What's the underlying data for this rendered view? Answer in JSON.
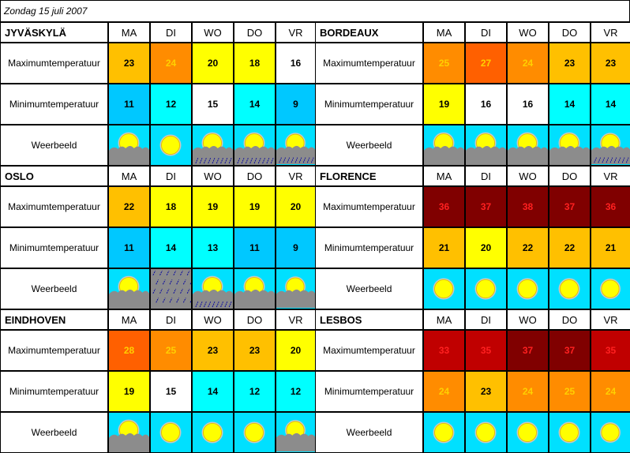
{
  "date": "Zondag 15 juli 2007",
  "days": [
    "MA",
    "DI",
    "WO",
    "DO",
    "VR"
  ],
  "row_labels": {
    "max": "Maximumtemperatuur",
    "min": "Minimumtemperatuur",
    "wx": "Weerbeeld"
  },
  "colors": {
    "cyan": "#00FFFF",
    "skyblue": "#00C8FF",
    "white": "#FFFFFF",
    "yellow": "#FFFF00",
    "lightorange": "#FFC000",
    "orange": "#FF8C00",
    "darkorange": "#FF6000",
    "red": "#C00000",
    "darkred": "#800000",
    "weather_bg": "#00E0FF"
  },
  "cities": [
    {
      "name": "JYVÄSKYLÄ",
      "max": [
        {
          "v": "23",
          "c": "lightorange"
        },
        {
          "v": "24",
          "c": "orange"
        },
        {
          "v": "20",
          "c": "yellow"
        },
        {
          "v": "18",
          "c": "yellow"
        },
        {
          "v": "16",
          "c": "white"
        }
      ],
      "min": [
        {
          "v": "11",
          "c": "skyblue"
        },
        {
          "v": "12",
          "c": "cyan"
        },
        {
          "v": "15",
          "c": "white"
        },
        {
          "v": "14",
          "c": "cyan"
        },
        {
          "v": "9",
          "c": "skyblue"
        }
      ],
      "wx": [
        "sun-behind-cloud-icon",
        "sun-icon",
        "sun-cloud-rain-icon",
        "sun-cloud-rain-icon",
        "sun-cloud-rain-icon"
      ]
    },
    {
      "name": "BORDEAUX",
      "max": [
        {
          "v": "25",
          "c": "orange"
        },
        {
          "v": "27",
          "c": "darkorange"
        },
        {
          "v": "24",
          "c": "orange"
        },
        {
          "v": "23",
          "c": "lightorange"
        },
        {
          "v": "23",
          "c": "lightorange"
        }
      ],
      "min": [
        {
          "v": "19",
          "c": "yellow"
        },
        {
          "v": "16",
          "c": "white"
        },
        {
          "v": "16",
          "c": "white"
        },
        {
          "v": "14",
          "c": "cyan"
        },
        {
          "v": "14",
          "c": "cyan"
        }
      ],
      "wx": [
        "sun-behind-cloud-icon",
        "sun-behind-cloud-icon",
        "sun-behind-cloud-icon",
        "sun-behind-cloud-icon",
        "sun-cloud-rain-icon"
      ]
    },
    {
      "name": "OSLO",
      "max": [
        {
          "v": "22",
          "c": "lightorange"
        },
        {
          "v": "18",
          "c": "yellow"
        },
        {
          "v": "19",
          "c": "yellow"
        },
        {
          "v": "19",
          "c": "yellow"
        },
        {
          "v": "20",
          "c": "yellow"
        }
      ],
      "min": [
        {
          "v": "11",
          "c": "skyblue"
        },
        {
          "v": "14",
          "c": "cyan"
        },
        {
          "v": "13",
          "c": "cyan"
        },
        {
          "v": "11",
          "c": "skyblue"
        },
        {
          "v": "9",
          "c": "skyblue"
        }
      ],
      "wx": [
        "sun-behind-cloud-icon",
        "rain-icon",
        "sun-cloud-rain-icon",
        "sun-behind-cloud-icon",
        "sun-behind-cloud-icon"
      ]
    },
    {
      "name": "FLORENCE",
      "max": [
        {
          "v": "36",
          "c": "darkred"
        },
        {
          "v": "37",
          "c": "darkred"
        },
        {
          "v": "38",
          "c": "darkred"
        },
        {
          "v": "37",
          "c": "darkred"
        },
        {
          "v": "36",
          "c": "darkred"
        }
      ],
      "min": [
        {
          "v": "21",
          "c": "lightorange"
        },
        {
          "v": "20",
          "c": "yellow"
        },
        {
          "v": "22",
          "c": "lightorange"
        },
        {
          "v": "22",
          "c": "lightorange"
        },
        {
          "v": "21",
          "c": "lightorange"
        }
      ],
      "wx": [
        "sun-icon",
        "sun-icon",
        "sun-icon",
        "sun-icon",
        "sun-icon"
      ]
    },
    {
      "name": "EINDHOVEN",
      "max": [
        {
          "v": "28",
          "c": "darkorange"
        },
        {
          "v": "25",
          "c": "orange"
        },
        {
          "v": "23",
          "c": "lightorange"
        },
        {
          "v": "23",
          "c": "lightorange"
        },
        {
          "v": "20",
          "c": "yellow"
        }
      ],
      "min": [
        {
          "v": "19",
          "c": "yellow"
        },
        {
          "v": "15",
          "c": "white"
        },
        {
          "v": "14",
          "c": "cyan"
        },
        {
          "v": "12",
          "c": "cyan"
        },
        {
          "v": "12",
          "c": "cyan"
        }
      ],
      "wx": [
        "sun-behind-cloud-icon",
        "sun-icon",
        "sun-icon",
        "sun-icon",
        "sun-behind-cloud-icon"
      ]
    },
    {
      "name": "LESBOS",
      "max": [
        {
          "v": "33",
          "c": "red"
        },
        {
          "v": "35",
          "c": "red"
        },
        {
          "v": "37",
          "c": "darkred"
        },
        {
          "v": "37",
          "c": "darkred"
        },
        {
          "v": "35",
          "c": "red"
        }
      ],
      "min": [
        {
          "v": "24",
          "c": "orange"
        },
        {
          "v": "23",
          "c": "lightorange"
        },
        {
          "v": "24",
          "c": "orange"
        },
        {
          "v": "25",
          "c": "orange"
        },
        {
          "v": "24",
          "c": "orange"
        }
      ],
      "wx": [
        "sun-icon",
        "sun-icon",
        "sun-icon",
        "sun-icon",
        "sun-icon"
      ]
    }
  ]
}
